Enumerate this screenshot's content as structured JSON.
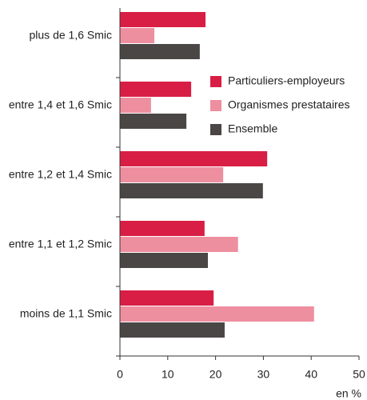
{
  "chart_data": {
    "type": "hbar",
    "categories": [
      "plus de 1,6 Smic",
      "entre 1,4 et 1,6 Smic",
      "entre 1,2 et 1,4 Smic",
      "entre 1,1 et 1,2 Smic",
      "moins de 1,1 Smic"
    ],
    "series": [
      {
        "name": "Particuliers-employeurs",
        "color": "#d81e45",
        "values": [
          17.9,
          14.9,
          30.8,
          17.7,
          19.6
        ]
      },
      {
        "name": "Organismes prestataires",
        "color": "#ee8fa0",
        "values": [
          7.2,
          6.5,
          21.6,
          24.7,
          40.6
        ]
      },
      {
        "name": "Ensemble",
        "color": "#4a4646",
        "values": [
          16.7,
          13.9,
          29.9,
          18.4,
          21.9
        ]
      }
    ],
    "xlabel": "en %",
    "xlim": [
      0,
      50
    ],
    "xticks": [
      0,
      10,
      20,
      30,
      40,
      50
    ],
    "legend": "upper right"
  }
}
